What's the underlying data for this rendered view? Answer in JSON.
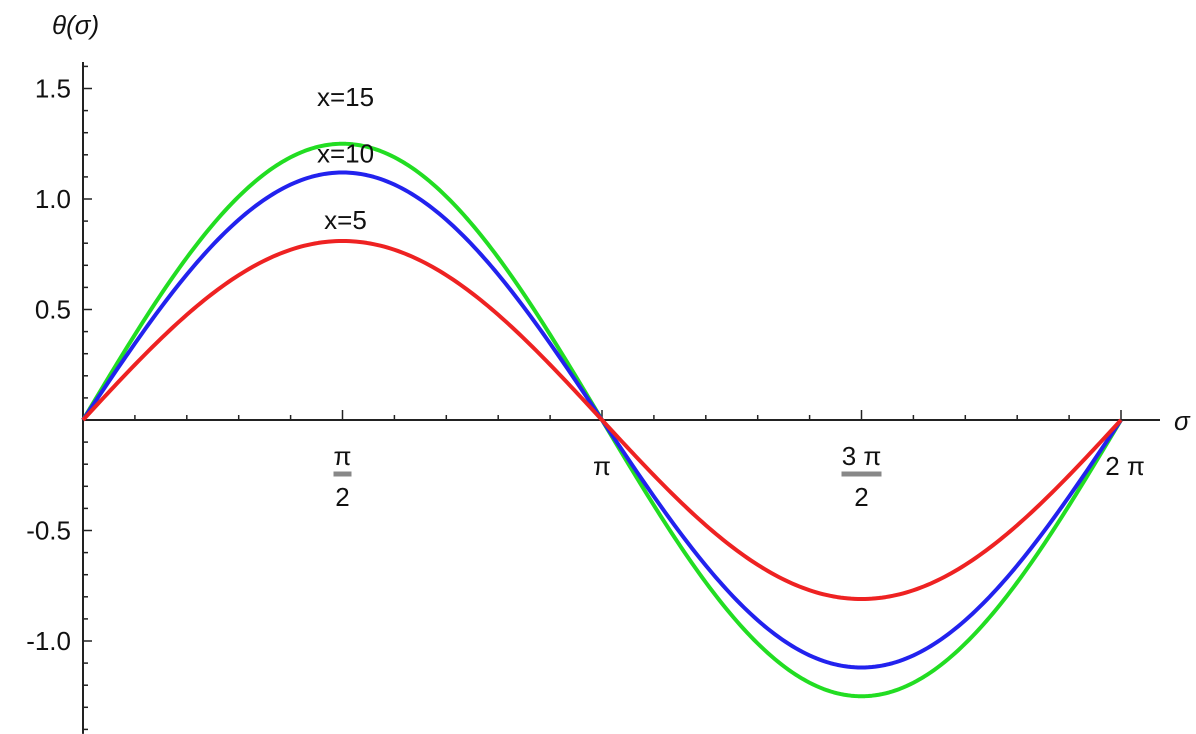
{
  "chart_data": {
    "type": "line",
    "ylabel": "θ(σ)",
    "xlabel": "σ",
    "xlim": [
      0,
      6.283185
    ],
    "ylim": [
      -1.42,
      1.62
    ],
    "grid": false,
    "y_ticks": [
      {
        "value": 1.5,
        "label": "1.5"
      },
      {
        "value": 1.0,
        "label": "1.0"
      },
      {
        "value": 0.5,
        "label": "0.5"
      },
      {
        "value": -0.5,
        "label": "-0.5"
      },
      {
        "value": -1.0,
        "label": "-1.0"
      }
    ],
    "x_ticks": [
      {
        "value": 1.570796,
        "label_num": "π",
        "label_den": "2"
      },
      {
        "value": 3.141593,
        "label": "π"
      },
      {
        "value": 4.712389,
        "label_num": "3 π",
        "label_den": "2"
      },
      {
        "value": 6.283185,
        "label": "2 π"
      }
    ],
    "series": [
      {
        "name": "x=15",
        "color": "#22dd22",
        "amplitude": 1.25,
        "function": "amplitude*sin(σ)"
      },
      {
        "name": "x=10",
        "color": "#2222ee",
        "amplitude": 1.12,
        "function": "amplitude*sin(σ)"
      },
      {
        "name": "x=5",
        "color": "#ee2222",
        "amplitude": 0.81,
        "function": "amplitude*sin(σ)"
      }
    ]
  }
}
